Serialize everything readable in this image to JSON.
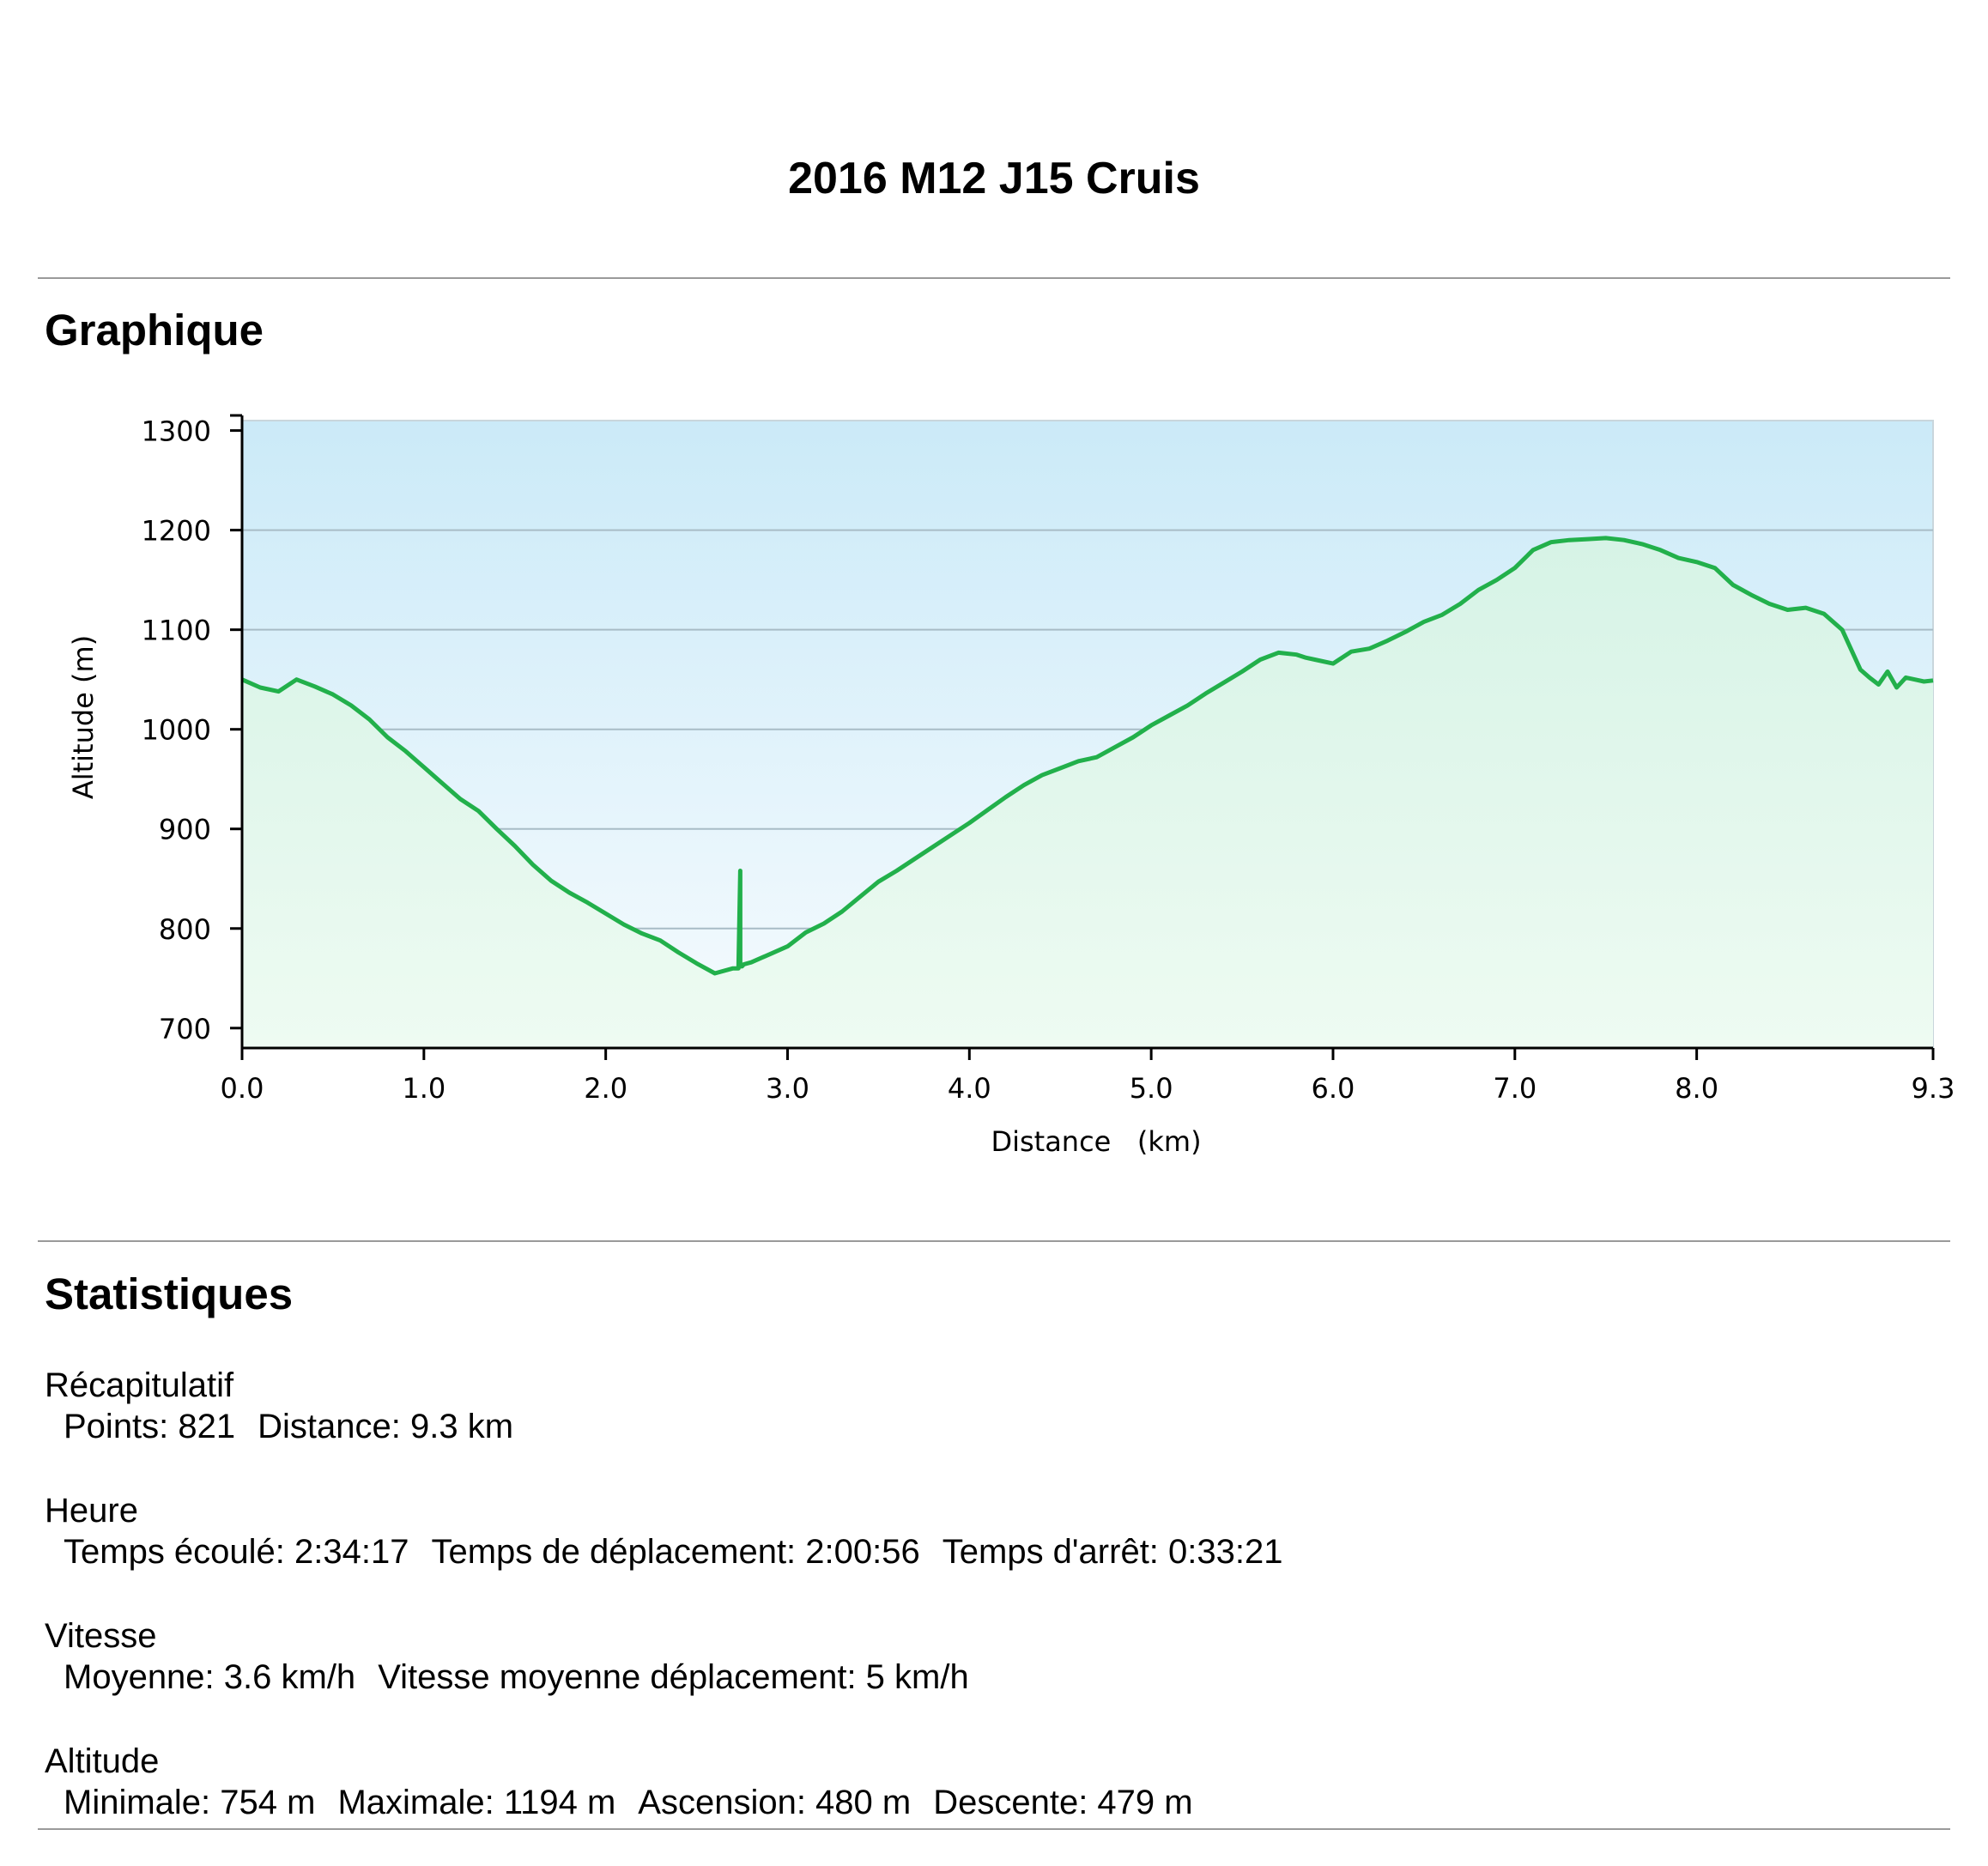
{
  "page": {
    "title": "2016 M12 J15 Cruis",
    "section_chart": "Graphique",
    "section_stats": "Statistiques"
  },
  "colors": {
    "line": "#22b04b",
    "sky_top": "#cbeaf8",
    "sky_bottom": "#f6fbfe",
    "fill_top": "#d6f3e6",
    "fill_bottom": "#eefbf2",
    "grid": "#a8bcc6"
  },
  "chart_data": {
    "type": "area",
    "xlabel": "Distance   (km)",
    "ylabel": "Altitude (m)",
    "xlim": [
      0,
      9.3
    ],
    "ylim": [
      680,
      1310
    ],
    "xticks": [
      "0.0",
      "1.0",
      "2.0",
      "3.0",
      "4.0",
      "5.0",
      "6.0",
      "7.0",
      "8.0",
      "9.3"
    ],
    "xtick_values": [
      0,
      1,
      2,
      3,
      4,
      5,
      6,
      7,
      8,
      9.3
    ],
    "yticks": [
      "700",
      "800",
      "900",
      "1000",
      "1100",
      "1200",
      "1300"
    ],
    "ytick_values": [
      700,
      800,
      900,
      1000,
      1100,
      1200,
      1300
    ],
    "gridlines_y": [
      800,
      900,
      1000,
      1100,
      1200
    ],
    "series": [
      {
        "x": [
          0,
          0.1,
          0.2,
          0.3,
          0.4,
          0.5,
          0.6,
          0.7,
          0.8,
          0.9,
          1.0,
          1.1,
          1.2,
          1.3,
          1.4,
          1.5,
          1.6,
          1.7,
          1.8,
          1.9,
          2.0,
          2.1,
          2.2,
          2.3,
          2.4,
          2.5,
          2.6,
          2.7,
          2.73,
          2.74,
          2.74,
          2.75,
          2.76,
          2.8,
          2.9,
          3.0,
          3.1,
          3.2,
          3.3,
          3.4,
          3.5,
          3.6,
          3.7,
          3.8,
          3.9,
          4.0,
          4.1,
          4.2,
          4.3,
          4.4,
          4.5,
          4.6,
          4.7,
          4.8,
          4.9,
          5.0,
          5.1,
          5.2,
          5.3,
          5.4,
          5.5,
          5.6,
          5.7,
          5.8,
          5.85,
          5.9,
          6.0,
          6.1,
          6.2,
          6.3,
          6.4,
          6.5,
          6.6,
          6.7,
          6.8,
          6.9,
          7.0,
          7.1,
          7.2,
          7.3,
          7.4,
          7.5,
          7.6,
          7.7,
          7.8,
          7.9,
          8.0,
          8.1,
          8.2,
          8.3,
          8.4,
          8.5,
          8.6,
          8.7,
          8.8,
          8.9,
          8.95,
          9.0,
          9.05,
          9.1,
          9.15,
          9.2,
          9.25,
          9.3
        ],
        "y": [
          1050,
          1042,
          1038,
          1050,
          1043,
          1035,
          1024,
          1010,
          992,
          978,
          962,
          946,
          930,
          918,
          900,
          883,
          864,
          848,
          836,
          826,
          815,
          804,
          795,
          788,
          776,
          765,
          755,
          760,
          760,
          858,
          762,
          762,
          764,
          766,
          774,
          782,
          796,
          805,
          817,
          832,
          847,
          858,
          870,
          882,
          894,
          906,
          919,
          932,
          944,
          954,
          961,
          968,
          972,
          982,
          992,
          1004,
          1014,
          1024,
          1036,
          1047,
          1058,
          1070,
          1077,
          1075,
          1072,
          1070,
          1066,
          1078,
          1081,
          1089,
          1098,
          1108,
          1115,
          1126,
          1140,
          1150,
          1162,
          1180,
          1188,
          1190,
          1191,
          1192,
          1190,
          1186,
          1180,
          1172,
          1168,
          1162,
          1145,
          1135,
          1126,
          1120,
          1122,
          1116,
          1100,
          1060,
          1052,
          1045,
          1058,
          1042,
          1052,
          1050,
          1048,
          1049
        ]
      }
    ]
  },
  "stats": {
    "groups": [
      {
        "title": "Récapitulatif",
        "items": [
          "Points: 821",
          "Distance: 9.3 km"
        ]
      },
      {
        "title": "Heure",
        "items": [
          "Temps écoulé: 2:34:17",
          "Temps de déplacement: 2:00:56",
          "Temps d'arrêt: 0:33:21"
        ]
      },
      {
        "title": "Vitesse",
        "items": [
          "Moyenne: 3.6 km/h",
          "Vitesse moyenne déplacement: 5 km/h"
        ]
      },
      {
        "title": "Altitude",
        "items": [
          "Minimale: 754 m",
          "Maximale: 1194 m",
          "Ascension: 480 m",
          "Descente: 479 m"
        ]
      }
    ]
  }
}
